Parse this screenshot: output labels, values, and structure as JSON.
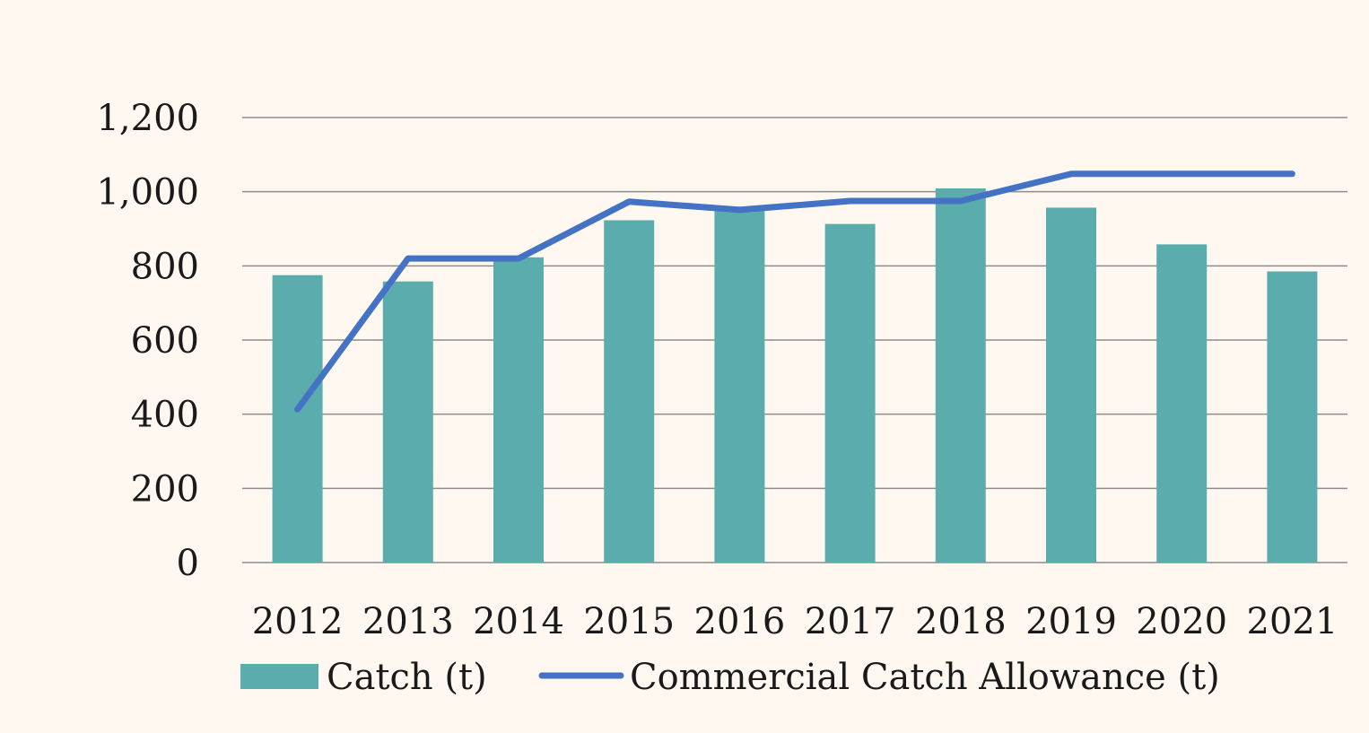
{
  "colors": {
    "background": "#fef8f1",
    "bar": "#5badad",
    "line": "#4472c4",
    "grid": "#8c8c8c"
  },
  "chart_data": {
    "type": "bar",
    "categories": [
      "2012",
      "2013",
      "2014",
      "2015",
      "2016",
      "2017",
      "2018",
      "2019",
      "2020",
      "2021"
    ],
    "series": [
      {
        "name": "Catch (t)",
        "type": "bar",
        "values": [
          775,
          758,
          823,
          923,
          950,
          913,
          1009,
          957,
          858,
          785
        ]
      },
      {
        "name": "Commercial Catch Allowance (t)",
        "type": "line",
        "values": [
          413,
          820,
          820,
          973,
          951,
          975,
          975,
          1048,
          1048,
          1048
        ]
      }
    ],
    "title": "",
    "xlabel": "",
    "ylabel": "",
    "ylim": [
      0,
      1200
    ],
    "yticks": [
      0,
      200,
      400,
      600,
      800,
      1000,
      1200
    ],
    "ytick_labels": [
      "0",
      "200",
      "400",
      "600",
      "800",
      "1,000",
      "1,200"
    ],
    "grid": true,
    "legend_position": "bottom"
  }
}
